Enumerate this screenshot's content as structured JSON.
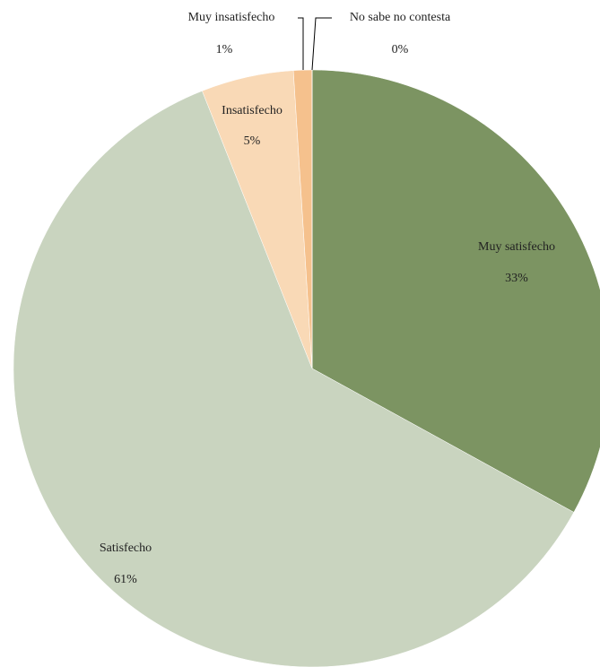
{
  "chart_data": {
    "type": "pie",
    "categories": [
      "Muy satisfecho",
      "Satisfecho",
      "Insatisfecho",
      "Muy insatisfecho",
      "No sabe no contesta"
    ],
    "values": [
      33,
      61,
      5,
      1,
      0
    ],
    "value_labels": [
      "33%",
      "61%",
      "5%",
      "1%",
      "0%"
    ],
    "colors": [
      "#7c9462",
      "#c9d4bf",
      "#f9d9b6",
      "#f5c18d",
      "#a0a0a0"
    ]
  }
}
